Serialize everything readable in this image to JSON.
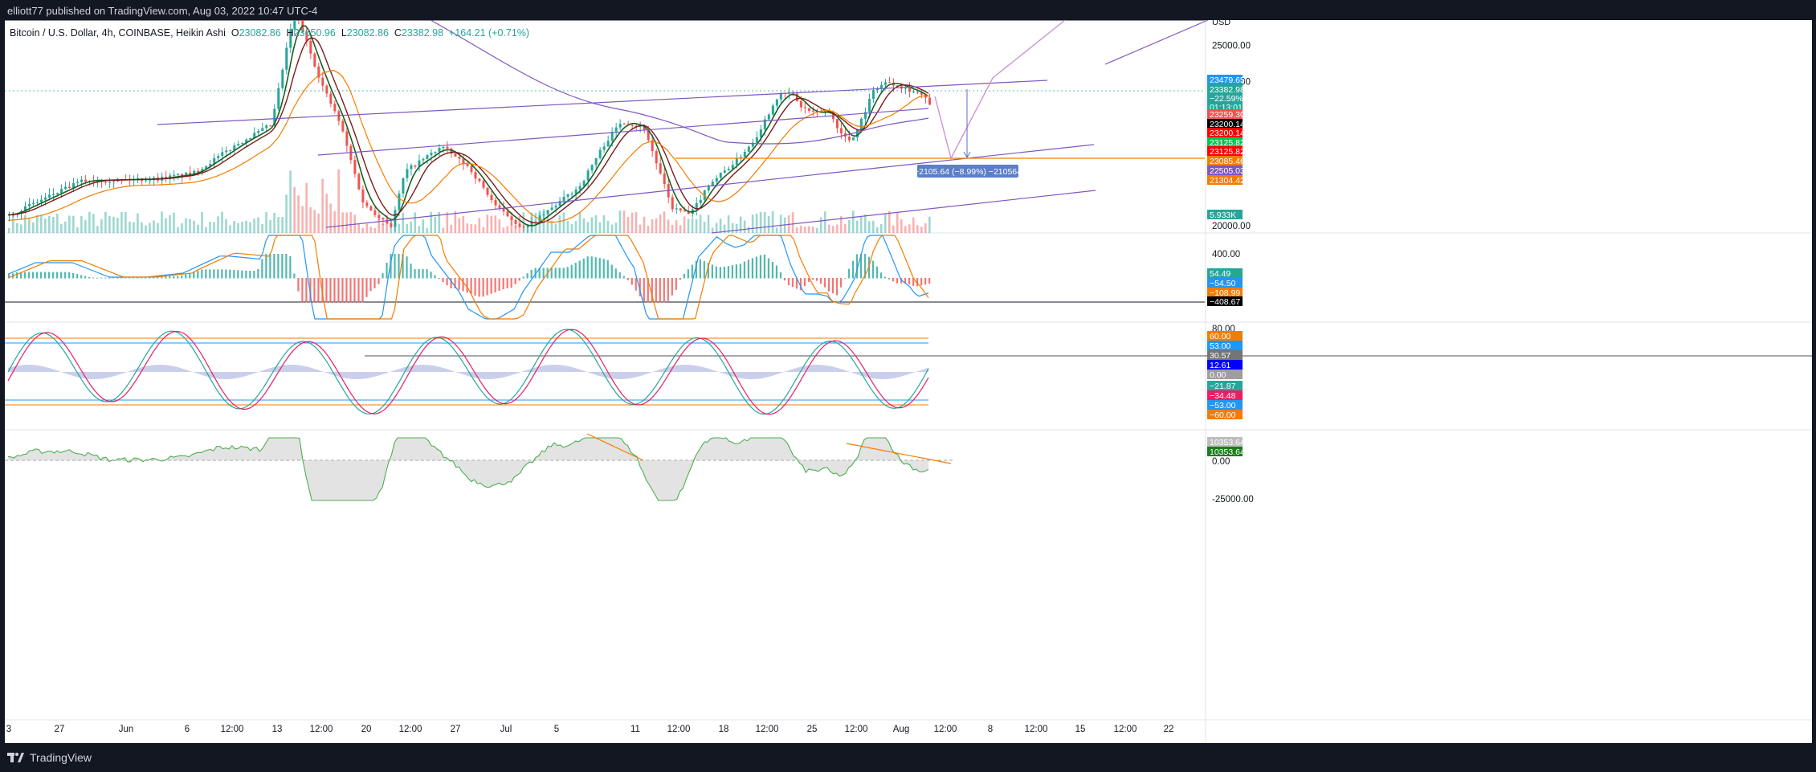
{
  "header": {
    "publish_line": "elliott77 published on TradingView.com, Aug 03, 2022 10:47 UTC-4"
  },
  "legend": {
    "symbol": "Bitcoin / U.S. Dollar, 4h, COINBASE, Heikin Ashi",
    "o_label": "O",
    "o_value": "23082.86",
    "h_label": "H",
    "h_value": "23650.96",
    "l_label": "L",
    "l_value": "23082.86",
    "c_label": "C",
    "c_value": "23382.98",
    "change": "+164.21 (+0.71%)"
  },
  "footer": {
    "brand": "TradingView"
  },
  "colors": {
    "up": "#26a69a",
    "down": "#ef5350",
    "ma_fast": "#1b5e20",
    "ma_slow": "#7b1a1a",
    "orange": "#f57c00",
    "purple": "#7e57c2",
    "blue": "#2196f3"
  },
  "chart_data": [
    {
      "type": "candlestick",
      "title": "Bitcoin / U.S. Dollar, 4h, COINBASE, Heikin Ashi",
      "currency": "USD",
      "x_ticks": [
        "3",
        "27",
        "Jun",
        "6",
        "12:00",
        "13",
        "12:00",
        "20",
        "12:00",
        "27",
        "Jul",
        "5",
        "11",
        "12:00",
        "18",
        "12:00",
        "25",
        "12:00",
        "Aug",
        "12:00",
        "8",
        "12:00",
        "15",
        "12:00",
        "22"
      ],
      "y_ticks": [
        25000,
        24000,
        20000
      ],
      "ylim": [
        19800,
        25700
      ],
      "close_path": [
        [
          0,
          20300
        ],
        [
          0.08,
          21250
        ],
        [
          0.16,
          21300
        ],
        [
          0.2,
          21450
        ],
        [
          0.25,
          22300
        ],
        [
          0.285,
          22800
        ],
        [
          0.31,
          26000
        ],
        [
          0.34,
          23900
        ],
        [
          0.36,
          22800
        ],
        [
          0.385,
          20600
        ],
        [
          0.415,
          20000
        ],
        [
          0.43,
          21500
        ],
        [
          0.47,
          22200
        ],
        [
          0.5,
          21600
        ],
        [
          0.53,
          20500
        ],
        [
          0.56,
          19900
        ],
        [
          0.59,
          20500
        ],
        [
          0.62,
          21100
        ],
        [
          0.645,
          22200
        ],
        [
          0.665,
          22900
        ],
        [
          0.69,
          22700
        ],
        [
          0.72,
          20500
        ],
        [
          0.74,
          20300
        ],
        [
          0.76,
          21150
        ],
        [
          0.79,
          21800
        ],
        [
          0.81,
          22400
        ],
        [
          0.835,
          23600
        ],
        [
          0.85,
          23700
        ],
        [
          0.86,
          23300
        ],
        [
          0.875,
          23100
        ],
        [
          0.89,
          23200
        ],
        [
          0.905,
          22500
        ],
        [
          0.915,
          22350
        ],
        [
          0.925,
          22900
        ],
        [
          0.94,
          23800
        ],
        [
          0.955,
          24000
        ],
        [
          0.975,
          23800
        ],
        [
          0.99,
          23650
        ],
        [
          1,
          23383
        ]
      ],
      "annotations": {
        "price_labels": [
          "23479.65",
          "23382.98",
          "−22.59%",
          "01:13:01",
          "23259.30",
          "23200.14",
          "23200.14",
          "23125.82",
          "23125.82",
          "23085.46",
          "22505.03",
          "21304.42",
          "5.933K"
        ],
        "measure": "−2105.64 (−8.99%) −210564"
      }
    },
    {
      "type": "line",
      "title": "MACD",
      "y_ticks": [
        400.0
      ],
      "values": [
        "54.49",
        "−54.50",
        "−108.99",
        "−408.67"
      ]
    },
    {
      "type": "line",
      "title": "Stochastic RSI",
      "y_ticks": [
        80.0
      ],
      "levels": [
        60,
        53,
        -53,
        -60
      ],
      "values": [
        "60.00",
        "53.00",
        "30.57",
        "12.61",
        "0.00",
        "−21.87",
        "−34.48",
        "−53.00",
        "−60.00"
      ]
    },
    {
      "type": "area",
      "title": "Oscillator",
      "y_ticks": [
        0.0,
        -25000.0
      ],
      "values": [
        "10353.64",
        "10353.64",
        "0.00",
        "−25000.00"
      ]
    }
  ]
}
